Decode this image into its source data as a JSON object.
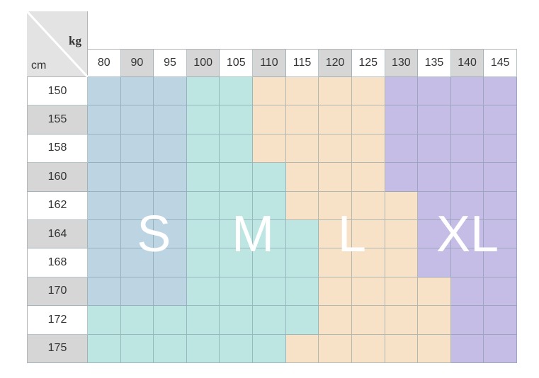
{
  "weight_unit": "kg",
  "height_unit": "cm",
  "weights_kg": [
    "80",
    "90",
    "95",
    "100",
    "105",
    "110",
    "115",
    "120",
    "125",
    "130",
    "135",
    "140",
    "145"
  ],
  "heights_cm": [
    "150",
    "155",
    "158",
    "160",
    "162",
    "164",
    "168",
    "170",
    "172",
    "175"
  ],
  "sizes": [
    {
      "name": "S",
      "color": "#bdd5e2"
    },
    {
      "name": "M",
      "color": "#bde5e1"
    },
    {
      "name": "L",
      "color": "#f8e2c7"
    },
    {
      "name": "XL",
      "color": "#c6bde6"
    }
  ],
  "grid": [
    [
      "S",
      "S",
      "S",
      "M",
      "M",
      "L",
      "L",
      "L",
      "L",
      "XL",
      "XL",
      "XL",
      "XL"
    ],
    [
      "S",
      "S",
      "S",
      "M",
      "M",
      "L",
      "L",
      "L",
      "L",
      "XL",
      "XL",
      "XL",
      "XL"
    ],
    [
      "S",
      "S",
      "S",
      "M",
      "M",
      "L",
      "L",
      "L",
      "L",
      "XL",
      "XL",
      "XL",
      "XL"
    ],
    [
      "S",
      "S",
      "S",
      "M",
      "M",
      "M",
      "L",
      "L",
      "L",
      "XL",
      "XL",
      "XL",
      "XL"
    ],
    [
      "S",
      "S",
      "S",
      "M",
      "M",
      "M",
      "L",
      "L",
      "L",
      "L",
      "XL",
      "XL",
      "XL"
    ],
    [
      "S",
      "S",
      "S",
      "M",
      "M",
      "M",
      "M",
      "L",
      "L",
      "L",
      "XL",
      "XL",
      "XL"
    ],
    [
      "S",
      "S",
      "S",
      "M",
      "M",
      "M",
      "M",
      "L",
      "L",
      "L",
      "XL",
      "XL",
      "XL"
    ],
    [
      "S",
      "S",
      "S",
      "M",
      "M",
      "M",
      "M",
      "L",
      "L",
      "L",
      "L",
      "XL",
      "XL"
    ],
    [
      "M",
      "M",
      "M",
      "M",
      "M",
      "M",
      "M",
      "L",
      "L",
      "L",
      "L",
      "XL",
      "XL"
    ],
    [
      "M",
      "M",
      "M",
      "M",
      "M",
      "M",
      "L",
      "L",
      "L",
      "L",
      "L",
      "XL",
      "XL"
    ]
  ]
}
